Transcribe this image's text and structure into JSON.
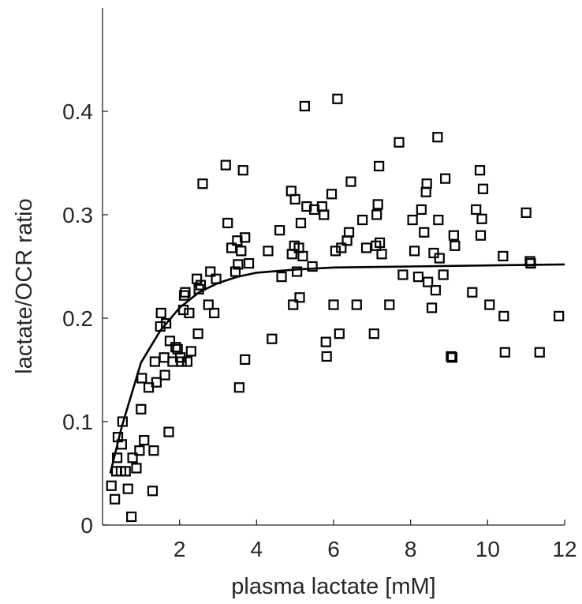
{
  "chart_data": {
    "type": "scatter",
    "title": "",
    "xlabel": "plasma lactate [mM]",
    "ylabel": "lactate/OCR ratio",
    "xlim": [
      0,
      12
    ],
    "ylim": [
      0,
      0.5
    ],
    "xticks": [
      2,
      4,
      6,
      8,
      10,
      12
    ],
    "xtick_labels": [
      "2",
      "4",
      "6",
      "8",
      "10",
      "12"
    ],
    "yticks": [
      0,
      0.1,
      0.2,
      0.3,
      0.4
    ],
    "ytick_labels": [
      "0",
      "0.1",
      "0.2",
      "0.3",
      "0.4"
    ],
    "grid": false,
    "colors": {
      "axis": "#262626",
      "marker": "#000000",
      "fit": "#000000"
    },
    "series": [
      {
        "type": "scatter",
        "marker": "square",
        "points": [
          [
            0.23,
            0.038
          ],
          [
            0.32,
            0.025
          ],
          [
            0.36,
            0.052
          ],
          [
            0.38,
            0.065
          ],
          [
            0.4,
            0.085
          ],
          [
            0.48,
            0.052
          ],
          [
            0.5,
            0.078
          ],
          [
            0.52,
            0.1
          ],
          [
            0.6,
            0.052
          ],
          [
            0.66,
            0.035
          ],
          [
            0.75,
            0.008
          ],
          [
            0.78,
            0.065
          ],
          [
            0.88,
            0.055
          ],
          [
            0.96,
            0.072
          ],
          [
            1.0,
            0.112
          ],
          [
            1.02,
            0.142
          ],
          [
            1.08,
            0.082
          ],
          [
            1.2,
            0.133
          ],
          [
            1.3,
            0.033
          ],
          [
            1.33,
            0.072
          ],
          [
            1.36,
            0.158
          ],
          [
            1.4,
            0.138
          ],
          [
            1.5,
            0.192
          ],
          [
            1.52,
            0.205
          ],
          [
            1.6,
            0.162
          ],
          [
            1.62,
            0.145
          ],
          [
            1.65,
            0.195
          ],
          [
            1.72,
            0.09
          ],
          [
            1.75,
            0.178
          ],
          [
            1.82,
            0.158
          ],
          [
            1.9,
            0.172
          ],
          [
            1.95,
            0.17
          ],
          [
            2.02,
            0.162
          ],
          [
            2.05,
            0.158
          ],
          [
            2.1,
            0.208
          ],
          [
            2.12,
            0.222
          ],
          [
            2.15,
            0.225
          ],
          [
            2.2,
            0.158
          ],
          [
            2.25,
            0.205
          ],
          [
            2.3,
            0.168
          ],
          [
            2.45,
            0.238
          ],
          [
            2.48,
            0.185
          ],
          [
            2.5,
            0.228
          ],
          [
            2.55,
            0.232
          ],
          [
            2.6,
            0.33
          ],
          [
            2.75,
            0.213
          ],
          [
            2.8,
            0.245
          ],
          [
            2.9,
            0.205
          ],
          [
            2.95,
            0.238
          ],
          [
            3.2,
            0.348
          ],
          [
            3.25,
            0.292
          ],
          [
            3.35,
            0.268
          ],
          [
            3.45,
            0.245
          ],
          [
            3.5,
            0.275
          ],
          [
            3.52,
            0.252
          ],
          [
            3.55,
            0.133
          ],
          [
            3.6,
            0.265
          ],
          [
            3.65,
            0.343
          ],
          [
            3.7,
            0.278
          ],
          [
            3.7,
            0.16
          ],
          [
            3.8,
            0.253
          ],
          [
            4.3,
            0.265
          ],
          [
            4.4,
            0.18
          ],
          [
            4.6,
            0.285
          ],
          [
            4.65,
            0.24
          ],
          [
            4.9,
            0.323
          ],
          [
            4.92,
            0.262
          ],
          [
            4.95,
            0.213
          ],
          [
            4.98,
            0.27
          ],
          [
            5.0,
            0.315
          ],
          [
            5.05,
            0.245
          ],
          [
            5.1,
            0.268
          ],
          [
            5.12,
            0.22
          ],
          [
            5.15,
            0.292
          ],
          [
            5.2,
            0.26
          ],
          [
            5.25,
            0.405
          ],
          [
            5.3,
            0.308
          ],
          [
            5.45,
            0.25
          ],
          [
            5.5,
            0.305
          ],
          [
            5.7,
            0.308
          ],
          [
            5.75,
            0.3
          ],
          [
            5.8,
            0.177
          ],
          [
            5.82,
            0.163
          ],
          [
            5.95,
            0.32
          ],
          [
            6.0,
            0.213
          ],
          [
            6.05,
            0.265
          ],
          [
            6.1,
            0.412
          ],
          [
            6.15,
            0.185
          ],
          [
            6.2,
            0.268
          ],
          [
            6.35,
            0.275
          ],
          [
            6.4,
            0.283
          ],
          [
            6.45,
            0.332
          ],
          [
            6.6,
            0.213
          ],
          [
            6.75,
            0.295
          ],
          [
            6.85,
            0.268
          ],
          [
            7.05,
            0.185
          ],
          [
            7.1,
            0.27
          ],
          [
            7.12,
            0.3
          ],
          [
            7.15,
            0.31
          ],
          [
            7.18,
            0.347
          ],
          [
            7.2,
            0.273
          ],
          [
            7.25,
            0.262
          ],
          [
            7.45,
            0.213
          ],
          [
            7.7,
            0.37
          ],
          [
            7.8,
            0.242
          ],
          [
            8.05,
            0.295
          ],
          [
            8.1,
            0.265
          ],
          [
            8.2,
            0.24
          ],
          [
            8.28,
            0.305
          ],
          [
            8.35,
            0.283
          ],
          [
            8.4,
            0.322
          ],
          [
            8.42,
            0.33
          ],
          [
            8.45,
            0.235
          ],
          [
            8.55,
            0.21
          ],
          [
            8.6,
            0.263
          ],
          [
            8.65,
            0.227
          ],
          [
            8.7,
            0.375
          ],
          [
            8.72,
            0.295
          ],
          [
            8.75,
            0.258
          ],
          [
            8.85,
            0.242
          ],
          [
            8.9,
            0.335
          ],
          [
            9.05,
            0.163
          ],
          [
            9.08,
            0.162
          ],
          [
            9.12,
            0.28
          ],
          [
            9.15,
            0.27
          ],
          [
            9.6,
            0.225
          ],
          [
            9.7,
            0.305
          ],
          [
            9.8,
            0.343
          ],
          [
            9.82,
            0.28
          ],
          [
            9.85,
            0.296
          ],
          [
            9.88,
            0.325
          ],
          [
            10.05,
            0.213
          ],
          [
            10.4,
            0.26
          ],
          [
            10.42,
            0.202
          ],
          [
            10.45,
            0.167
          ],
          [
            11.0,
            0.302
          ],
          [
            11.1,
            0.255
          ],
          [
            11.12,
            0.253
          ],
          [
            11.35,
            0.167
          ],
          [
            11.85,
            0.202
          ]
        ]
      },
      {
        "type": "line",
        "points": [
          [
            0.2,
            0.05
          ],
          [
            0.5,
            0.095
          ],
          [
            1.0,
            0.157
          ],
          [
            1.5,
            0.188
          ],
          [
            2.0,
            0.21
          ],
          [
            2.5,
            0.225
          ],
          [
            3.0,
            0.234
          ],
          [
            3.5,
            0.24
          ],
          [
            4.0,
            0.244
          ],
          [
            5.0,
            0.247
          ],
          [
            6.0,
            0.249
          ],
          [
            8.0,
            0.25
          ],
          [
            10.0,
            0.251
          ],
          [
            12.0,
            0.252
          ]
        ]
      }
    ]
  }
}
